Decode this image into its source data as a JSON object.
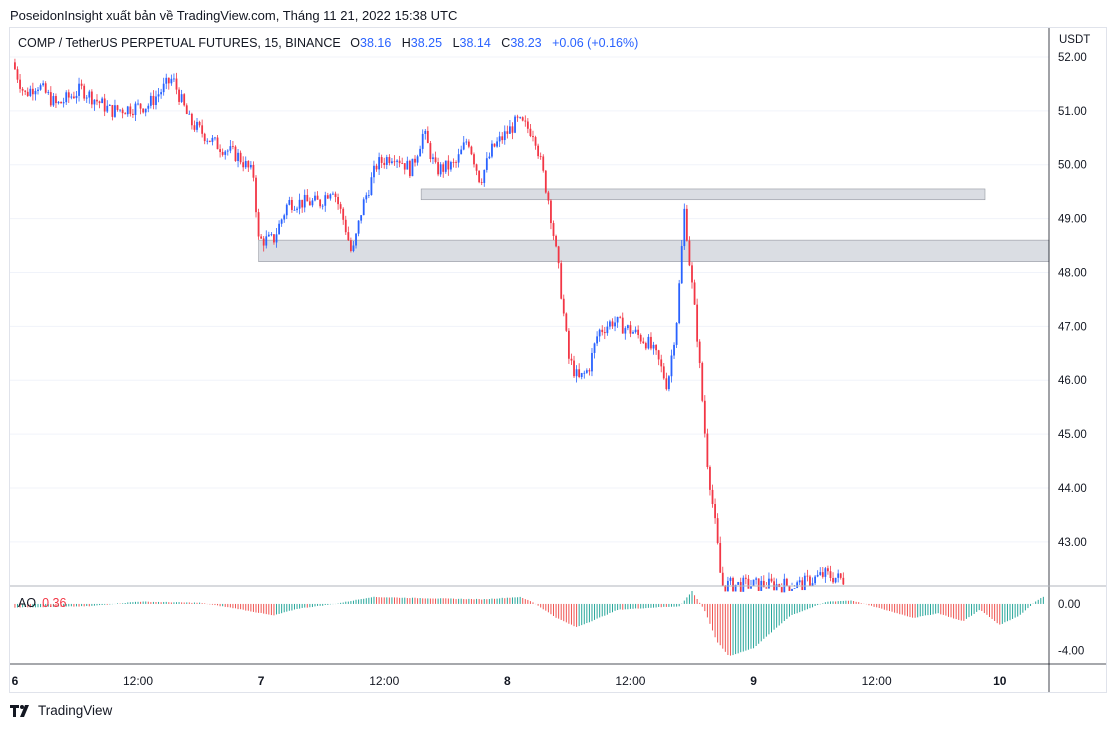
{
  "header": {
    "published_line": "PoseidonInsight xuất bản về TradingView.com, Tháng 11 21, 2022 15:38 UTC"
  },
  "legend": {
    "symbol": "COMP / TetherUS PERPETUAL FUTURES, 15, BINANCE",
    "o_label": "O",
    "o_value": "38.16",
    "h_label": "H",
    "h_value": "38.25",
    "l_label": "L",
    "l_value": "38.14",
    "c_label": "C",
    "c_value": "38.23",
    "change": "+0.06 (+0.16%)"
  },
  "ao_legend": {
    "name": "AO",
    "value": "0.36"
  },
  "price_unit": "USDT",
  "footer": {
    "brand": "TradingView"
  },
  "colors": {
    "up": "#2962ff",
    "down": "#f23645",
    "ao_up": "#26a69a",
    "ao_down": "#ef5350",
    "zone": "#d1d4dc",
    "grid": "#e0e3eb",
    "axis_text": "#131722"
  },
  "chart_data": [
    {
      "type": "candlestick",
      "interval": "15",
      "ylim": [
        42.2,
        52.5
      ],
      "y_ticks": [
        "52.00",
        "51.00",
        "50.00",
        "49.00",
        "48.00",
        "47.00",
        "46.00",
        "45.00",
        "44.00",
        "43.00"
      ],
      "x_ticks": [
        "6",
        "12:00",
        "7",
        "12:00",
        "8",
        "12:00",
        "9",
        "12:00",
        "10"
      ],
      "x_tick_pos": [
        0,
        0.5,
        1,
        1.5,
        2,
        2.5,
        3,
        3.5,
        4
      ],
      "xlim": [
        -0.02,
        4.2
      ],
      "price_anchors": [
        [
          0.0,
          51.9
        ],
        [
          0.05,
          51.3
        ],
        [
          0.1,
          51.5
        ],
        [
          0.18,
          51.1
        ],
        [
          0.28,
          51.4
        ],
        [
          0.4,
          51.0
        ],
        [
          0.55,
          51.1
        ],
        [
          0.65,
          51.6
        ],
        [
          0.72,
          50.8
        ],
        [
          0.82,
          50.4
        ],
        [
          0.92,
          50.15
        ],
        [
          0.98,
          49.8
        ],
        [
          1.0,
          48.6
        ],
        [
          1.06,
          48.6
        ],
        [
          1.12,
          49.3
        ],
        [
          1.25,
          49.3
        ],
        [
          1.3,
          49.6
        ],
        [
          1.35,
          48.9
        ],
        [
          1.38,
          48.3
        ],
        [
          1.42,
          49.2
        ],
        [
          1.48,
          50.0
        ],
        [
          1.55,
          50.2
        ],
        [
          1.62,
          49.9
        ],
        [
          1.67,
          50.6
        ],
        [
          1.72,
          49.9
        ],
        [
          1.8,
          50.0
        ],
        [
          1.85,
          50.5
        ],
        [
          1.9,
          49.7
        ],
        [
          1.95,
          50.3
        ],
        [
          2.05,
          50.8
        ],
        [
          2.12,
          50.6
        ],
        [
          2.18,
          49.3
        ],
        [
          2.22,
          48.0
        ],
        [
          2.26,
          46.4
        ],
        [
          2.3,
          46.0
        ],
        [
          2.34,
          46.2
        ],
        [
          2.38,
          46.9
        ],
        [
          2.44,
          47.1
        ],
        [
          2.52,
          46.9
        ],
        [
          2.58,
          46.7
        ],
        [
          2.62,
          46.4
        ],
        [
          2.66,
          45.9
        ],
        [
          2.7,
          47.2
        ],
        [
          2.73,
          49.2
        ],
        [
          2.75,
          48.2
        ],
        [
          2.78,
          46.9
        ],
        [
          2.82,
          44.6
        ],
        [
          2.86,
          43.1
        ],
        [
          2.88,
          42.2
        ],
        [
          2.98,
          42.2
        ],
        [
          3.2,
          42.2
        ],
        [
          3.3,
          42.4
        ],
        [
          3.37,
          42.3
        ]
      ],
      "support_zones": [
        {
          "from_x": 1.65,
          "to_x": 3.94,
          "y_low": 49.35,
          "y_high": 49.55
        },
        {
          "from_x": 0.99,
          "to_x": 4.2,
          "y_low": 48.2,
          "y_high": 48.6
        }
      ],
      "last_visible_close": 42.3
    },
    {
      "type": "histogram",
      "name": "AO",
      "ylim": [
        -5.0,
        1.2
      ],
      "y_ticks": [
        "0.00",
        "-4.00"
      ],
      "segments": [
        [
          0.0,
          -0.3
        ],
        [
          0.3,
          -0.2
        ],
        [
          0.5,
          0.2
        ],
        [
          0.75,
          0.1
        ],
        [
          0.9,
          -0.4
        ],
        [
          1.0,
          -0.8
        ],
        [
          1.05,
          -1.0
        ],
        [
          1.15,
          -0.4
        ],
        [
          1.3,
          0.0
        ],
        [
          1.45,
          0.6
        ],
        [
          1.65,
          0.5
        ],
        [
          1.9,
          0.4
        ],
        [
          2.05,
          0.6
        ],
        [
          2.1,
          0.2
        ],
        [
          2.2,
          -1.2
        ],
        [
          2.28,
          -2.0
        ],
        [
          2.34,
          -1.5
        ],
        [
          2.45,
          -0.5
        ],
        [
          2.6,
          -0.3
        ],
        [
          2.7,
          -0.2
        ],
        [
          2.75,
          1.1
        ],
        [
          2.8,
          -0.5
        ],
        [
          2.85,
          -3.2
        ],
        [
          2.9,
          -4.5
        ],
        [
          3.0,
          -3.8
        ],
        [
          3.15,
          -1.0
        ],
        [
          3.3,
          0.2
        ],
        [
          3.4,
          0.3
        ],
        [
          3.55,
          -0.6
        ],
        [
          3.65,
          -1.2
        ],
        [
          3.75,
          -0.8
        ],
        [
          3.85,
          -1.5
        ],
        [
          3.92,
          -0.5
        ],
        [
          4.0,
          -1.8
        ],
        [
          4.08,
          -1.0
        ],
        [
          4.15,
          0.3
        ],
        [
          4.2,
          0.9
        ]
      ]
    }
  ]
}
